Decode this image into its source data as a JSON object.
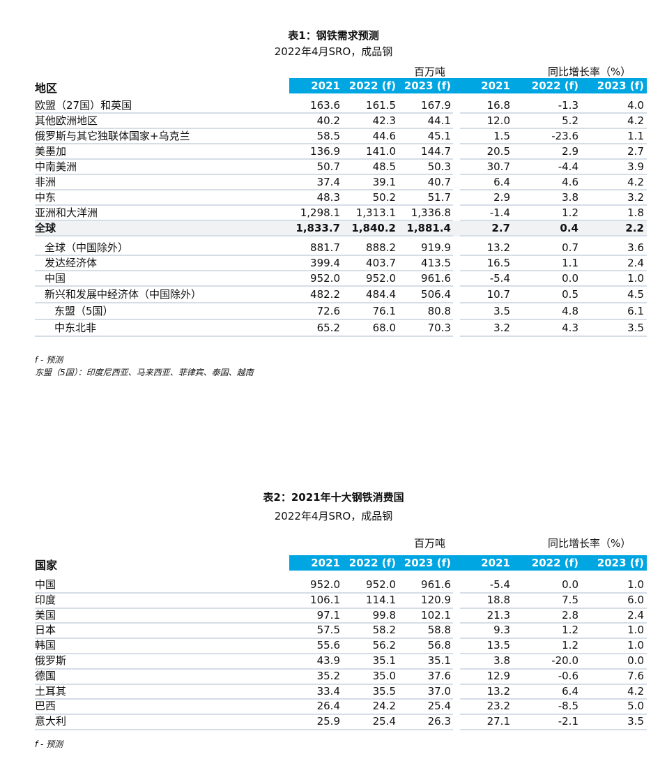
{
  "table1": {
    "title": "表1：钢铁需求预测",
    "subtitle": "2022年4月SRO，成品钢",
    "unit_left": "百万吨",
    "unit_right": "同比增长率（%）",
    "row_header": "地区",
    "columns": [
      "2021",
      "2022 (f)",
      "2023 (f)",
      "2021",
      "2022 (f)",
      "2023 (f)"
    ],
    "rows": [
      {
        "label": "欧盟（27国）和英国",
        "values": [
          "163.6",
          "161.5",
          "167.9",
          "16.8",
          "-1.3",
          "4.0"
        ]
      },
      {
        "label": "其他欧洲地区",
        "values": [
          "40.2",
          "42.3",
          "44.1",
          "12.0",
          "5.2",
          "4.2"
        ]
      },
      {
        "label": "俄罗斯与其它独联体国家+乌克兰",
        "values": [
          "58.5",
          "44.6",
          "45.1",
          "1.5",
          "-23.6",
          "1.1"
        ]
      },
      {
        "label": "美墨加",
        "values": [
          "136.9",
          "141.0",
          "144.7",
          "20.5",
          "2.9",
          "2.7"
        ]
      },
      {
        "label": "中南美洲",
        "values": [
          "50.7",
          "48.5",
          "50.3",
          "30.7",
          "-4.4",
          "3.9"
        ]
      },
      {
        "label": "非洲",
        "values": [
          "37.4",
          "39.1",
          "40.7",
          "6.4",
          "4.6",
          "4.2"
        ]
      },
      {
        "label": "中东",
        "values": [
          "48.3",
          "50.2",
          "51.7",
          "2.9",
          "3.8",
          "3.2"
        ]
      },
      {
        "label": "亚洲和大洋洲",
        "values": [
          "1,298.1",
          "1,313.1",
          "1,336.8",
          "-1.4",
          "1.2",
          "1.8"
        ]
      },
      {
        "label": "全球",
        "values": [
          "1,833.7",
          "1,840.2",
          "1,881.4",
          "2.7",
          "0.4",
          "2.2"
        ],
        "total": true
      },
      {
        "label": "全球（中国除外）",
        "values": [
          "881.7",
          "888.2",
          "919.9",
          "13.2",
          "0.7",
          "3.6"
        ],
        "indent": 1
      },
      {
        "label": "发达经济体",
        "values": [
          "399.4",
          "403.7",
          "413.5",
          "16.5",
          "1.1",
          "2.4"
        ],
        "indent": 1
      },
      {
        "label": "中国",
        "values": [
          "952.0",
          "952.0",
          "961.6",
          "-5.4",
          "0.0",
          "1.0"
        ],
        "indent": 1
      },
      {
        "label": "新兴和发展中经济体（中国除外）",
        "values": [
          "482.2",
          "484.4",
          "506.4",
          "10.7",
          "0.5",
          "4.5"
        ],
        "indent": 1
      },
      {
        "label": "东盟（5国）",
        "values": [
          "72.6",
          "76.1",
          "80.8",
          "3.5",
          "4.8",
          "6.1"
        ],
        "indent": 2
      },
      {
        "label": "中东北非",
        "values": [
          "65.2",
          "68.0",
          "70.3",
          "3.2",
          "4.3",
          "3.5"
        ],
        "indent": 2
      }
    ],
    "footnotes": [
      "f - 预测",
      "东盟（5国）：印度尼西亚、马来西亚、菲律宾、泰国、越南"
    ]
  },
  "table2": {
    "title": "表2：2021年十大钢铁消费国",
    "subtitle": "2022年4月SRO，成品钢",
    "unit_left": "百万吨",
    "unit_right": "同比增长率（%）",
    "row_header": "国家",
    "columns": [
      "2021",
      "2022 (f)",
      "2023 (f)",
      "2021",
      "2022 (f)",
      "2023 (f)"
    ],
    "rows": [
      {
        "label": "中国",
        "values": [
          "952.0",
          "952.0",
          "961.6",
          "-5.4",
          "0.0",
          "1.0"
        ]
      },
      {
        "label": "印度",
        "values": [
          "106.1",
          "114.1",
          "120.9",
          "18.8",
          "7.5",
          "6.0"
        ]
      },
      {
        "label": "美国",
        "values": [
          "97.1",
          "99.8",
          "102.1",
          "21.3",
          "2.8",
          "2.4"
        ]
      },
      {
        "label": "日本",
        "values": [
          "57.5",
          "58.2",
          "58.8",
          "9.3",
          "1.2",
          "1.0"
        ]
      },
      {
        "label": "韩国",
        "values": [
          "55.6",
          "56.2",
          "56.8",
          "13.5",
          "1.2",
          "1.0"
        ]
      },
      {
        "label": "俄罗斯",
        "values": [
          "43.9",
          "35.1",
          "35.1",
          "3.8",
          "-20.0",
          "0.0"
        ]
      },
      {
        "label": "德国",
        "values": [
          "35.2",
          "35.0",
          "37.6",
          "12.9",
          "-0.6",
          "7.6"
        ]
      },
      {
        "label": "土耳其",
        "values": [
          "33.4",
          "35.5",
          "37.0",
          "13.2",
          "6.4",
          "4.2"
        ]
      },
      {
        "label": "巴西",
        "values": [
          "26.4",
          "24.2",
          "25.4",
          "23.2",
          "-8.5",
          "5.0"
        ]
      },
      {
        "label": "意大利",
        "values": [
          "25.9",
          "25.4",
          "26.3",
          "27.1",
          "-2.1",
          "3.5"
        ]
      }
    ],
    "footnotes": [
      "f - 预测"
    ]
  },
  "colors": {
    "header_bg": "#00a6e2",
    "total_bg": "#f0f2f4",
    "row_line": "#d5dde6"
  }
}
